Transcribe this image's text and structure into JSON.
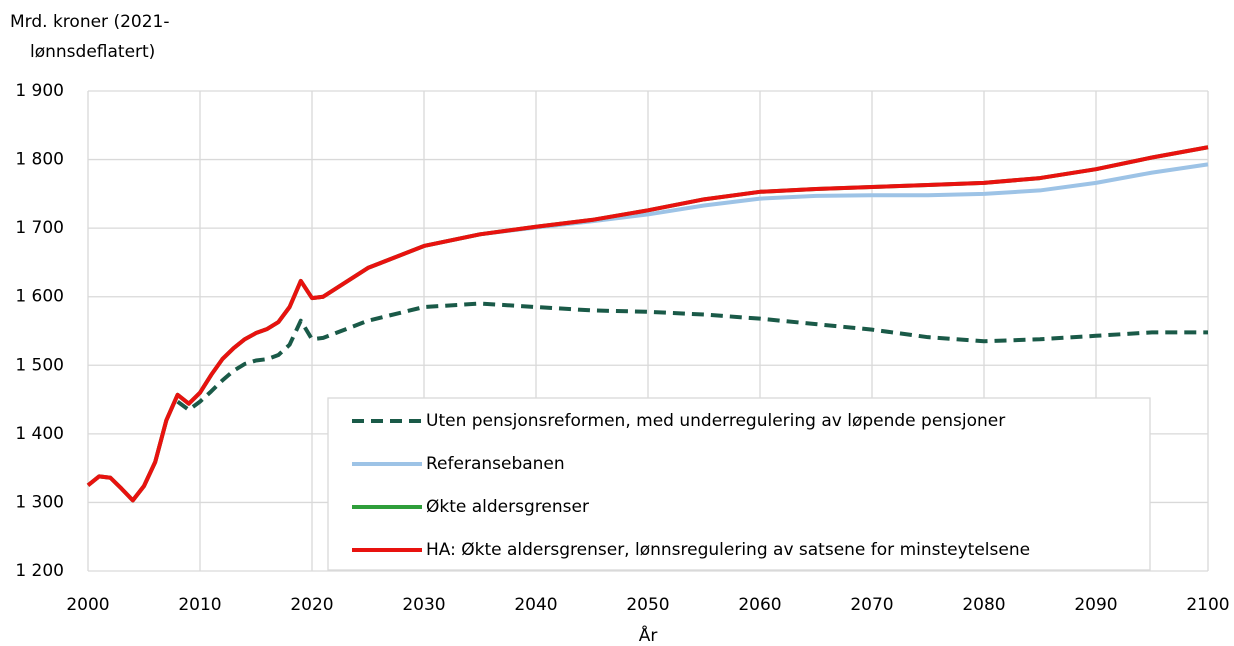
{
  "chart_data": {
    "type": "line",
    "y_label": [
      "Mrd. kroner (2021-",
      "lønnsdeflatert)"
    ],
    "x_label": "År",
    "x": [
      2000,
      2001,
      2002,
      2003,
      2004,
      2005,
      2006,
      2007,
      2008,
      2009,
      2010,
      2011,
      2012,
      2013,
      2014,
      2015,
      2016,
      2017,
      2018,
      2019,
      2020,
      2021,
      2025,
      2030,
      2035,
      2040,
      2045,
      2050,
      2055,
      2060,
      2065,
      2070,
      2075,
      2080,
      2085,
      2090,
      2095,
      2100
    ],
    "series": [
      {
        "name": "Uten pensjonsreformen, med underregulering av løpende pensjoner",
        "color": "#1a5a48",
        "dashed": true,
        "values": [
          null,
          null,
          null,
          null,
          null,
          null,
          null,
          null,
          1447,
          1435,
          1447,
          1462,
          1478,
          1492,
          1502,
          1507,
          1509,
          1515,
          1530,
          1565,
          1538,
          1540,
          1565,
          1585,
          1590,
          1585,
          1580,
          1578,
          1574,
          1568,
          1560,
          1552,
          1541,
          1535,
          1538,
          1543,
          1548,
          1548
        ]
      },
      {
        "name": "Referansebanen",
        "color": "#9dc3e6",
        "values": [
          1325,
          1338,
          1336,
          1320,
          1303,
          1324,
          1359,
          1420,
          1457,
          1444,
          1460,
          1486,
          1509,
          1525,
          1538,
          1547,
          1553,
          1563,
          1585,
          1623,
          1598,
          1600,
          1642,
          1674,
          1691,
          1701,
          1710,
          1720,
          1733,
          1743,
          1747,
          1748,
          1748,
          1750,
          1755,
          1766,
          1781,
          1793
        ]
      },
      {
        "name": "Økte aldersgrenser",
        "color": "#2e9e3a",
        "values": [
          1325,
          1338,
          1336,
          1320,
          1303,
          1324,
          1359,
          1420,
          1457,
          1444,
          1460,
          1486,
          1509,
          1525,
          1538,
          1547,
          1553,
          1563,
          1585,
          1623,
          1598,
          1600,
          1642,
          1674,
          1691,
          1702,
          1712,
          1726,
          1742,
          1753,
          1757,
          1760,
          1763,
          1766,
          1773,
          1786,
          1803,
          1818
        ]
      },
      {
        "name": "HA: Økte aldersgrenser, lønnsregulering av satsene for minsteytelsene",
        "color": "#e8120f",
        "values": [
          1325,
          1338,
          1336,
          1320,
          1303,
          1324,
          1359,
          1420,
          1457,
          1444,
          1460,
          1486,
          1509,
          1525,
          1538,
          1547,
          1553,
          1563,
          1585,
          1623,
          1598,
          1600,
          1642,
          1674,
          1691,
          1702,
          1712,
          1726,
          1742,
          1753,
          1757,
          1760,
          1763,
          1766,
          1773,
          1786,
          1803,
          1818
        ]
      }
    ],
    "xlim": [
      2000,
      2100
    ],
    "xticks": [
      2000,
      2010,
      2020,
      2030,
      2040,
      2050,
      2060,
      2070,
      2080,
      2090,
      2100
    ],
    "ylim": [
      1200,
      1900
    ],
    "yticks": [
      {
        "value": 1200,
        "label": "1 200"
      },
      {
        "value": 1300,
        "label": "1 300"
      },
      {
        "value": 1400,
        "label": "1 400"
      },
      {
        "value": 1500,
        "label": "1 500"
      },
      {
        "value": 1600,
        "label": "1 600"
      },
      {
        "value": 1700,
        "label": "1 700"
      },
      {
        "value": 1800,
        "label": "1 800"
      },
      {
        "value": 1900,
        "label": "1 900"
      }
    ],
    "grid": true
  }
}
